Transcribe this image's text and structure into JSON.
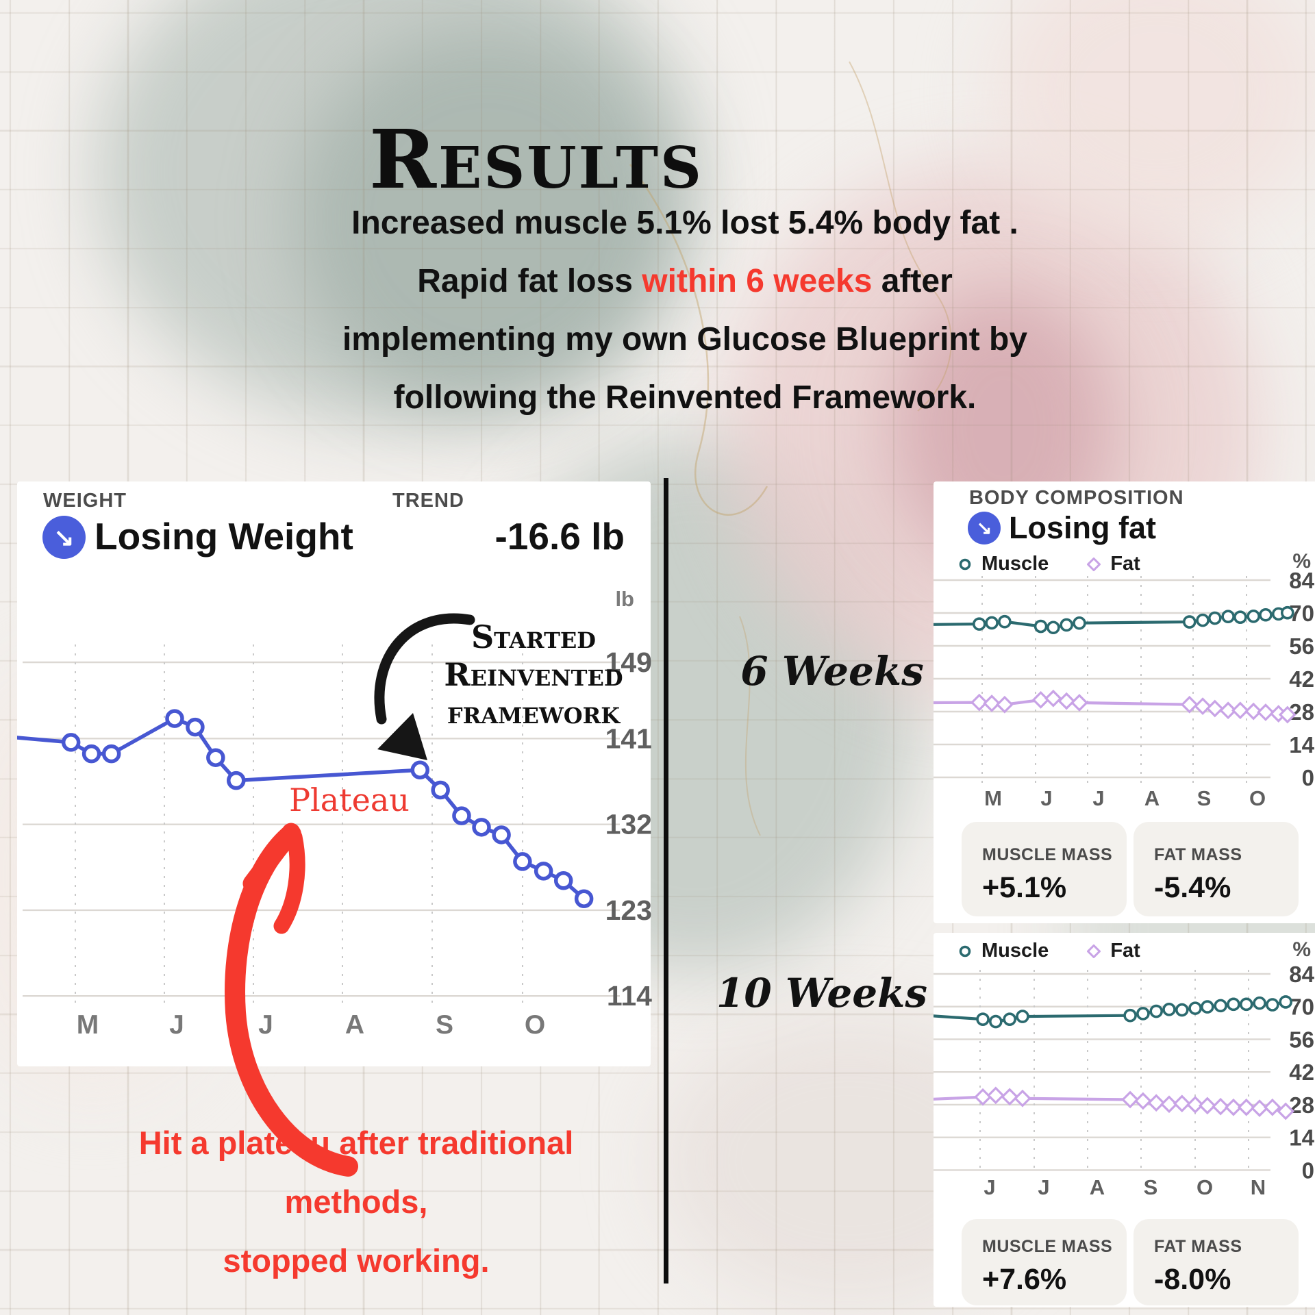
{
  "title": "Results",
  "icons": {
    "down_right_arrow": "↘"
  },
  "accent_colors": {
    "red": "#f5392e",
    "blue": "#4757d2",
    "teal": "#2b6a6f",
    "purple": "#c8a3e6"
  },
  "intro": {
    "line1": "Increased muscle 5.1% lost 5.4% body fat .",
    "line2_pre": "Rapid fat loss ",
    "line2_red": "within 6 weeks",
    "line2_post": " after",
    "line3": "implementing my own Glucose Blueprint by",
    "line4": "following the Reinvented Framework."
  },
  "weight_card": {
    "category": "WEIGHT",
    "trend_label": "TREND",
    "status": "Losing Weight",
    "trend_value": "-16.6 lb",
    "unit": "lb",
    "annotation_lines": [
      "Started",
      "Reinvented",
      "framework"
    ],
    "plateau": "Plateau"
  },
  "body_card": {
    "category": "BODY COMPOSITION",
    "status": "Losing fat",
    "legend": {
      "muscle": "Muscle",
      "fat": "Fat"
    },
    "unit": "%"
  },
  "section_labels": {
    "six": "6 Weeks",
    "ten": "10 Weeks"
  },
  "stats_6w": {
    "muscle_label": "MUSCLE MASS",
    "muscle_value": "+5.1%",
    "fat_label": "FAT MASS",
    "fat_value": "-5.4%"
  },
  "stats_10w": {
    "muscle_label": "MUSCLE MASS",
    "muscle_value": "+7.6%",
    "fat_label": "FAT MASS",
    "fat_value": "-8.0%"
  },
  "footer_note": {
    "line1": "Hit a plateau after traditional",
    "line2": "methods,",
    "line3": "stopped working."
  },
  "chart_data": [
    {
      "id": "weight_trend",
      "type": "line",
      "title": "Losing Weight",
      "ylabel": "lb",
      "ylim": [
        110,
        152
      ],
      "yticks": [
        149,
        141,
        132,
        123,
        114
      ],
      "xticks": [
        "M",
        "J",
        "J",
        "A",
        "S",
        "O"
      ],
      "grid": true,
      "series": [
        {
          "name": "Weight",
          "color": "#4757d2",
          "marker": "circle",
          "points": [
            {
              "x": 0.0,
              "y": 141.1,
              "m": 0
            },
            {
              "x": 0.092,
              "y": 140.6
            },
            {
              "x": 0.127,
              "y": 139.4
            },
            {
              "x": 0.161,
              "y": 139.4
            },
            {
              "x": 0.269,
              "y": 143.1
            },
            {
              "x": 0.304,
              "y": 142.2
            },
            {
              "x": 0.339,
              "y": 139.0
            },
            {
              "x": 0.374,
              "y": 136.6
            },
            {
              "x": 0.688,
              "y": 137.7
            },
            {
              "x": 0.723,
              "y": 135.6
            },
            {
              "x": 0.759,
              "y": 132.9
            },
            {
              "x": 0.793,
              "y": 131.7
            },
            {
              "x": 0.827,
              "y": 130.9
            },
            {
              "x": 0.863,
              "y": 128.1
            },
            {
              "x": 0.899,
              "y": 127.1
            },
            {
              "x": 0.933,
              "y": 126.1
            },
            {
              "x": 0.968,
              "y": 124.2
            }
          ]
        }
      ]
    },
    {
      "id": "body_comp_6w",
      "type": "line",
      "title": "Body Composition - 6 Weeks",
      "ylabel": "%",
      "ylim": [
        0,
        84
      ],
      "yticks": [
        84,
        70,
        56,
        42,
        28,
        14,
        0
      ],
      "xticks": [
        "M",
        "J",
        "J",
        "A",
        "S",
        "O"
      ],
      "grid": true,
      "legend_position": "top-left",
      "series": [
        {
          "name": "Muscle",
          "color": "#2b6a6f",
          "marker": "circle",
          "points": [
            {
              "x": 0.0,
              "y": 65.1,
              "m": 0
            },
            {
              "x": 0.128,
              "y": 65.3
            },
            {
              "x": 0.163,
              "y": 65.8
            },
            {
              "x": 0.199,
              "y": 66.3
            },
            {
              "x": 0.3,
              "y": 64.3
            },
            {
              "x": 0.335,
              "y": 63.8
            },
            {
              "x": 0.372,
              "y": 64.9
            },
            {
              "x": 0.408,
              "y": 65.7
            },
            {
              "x": 0.716,
              "y": 66.2
            },
            {
              "x": 0.753,
              "y": 66.9
            },
            {
              "x": 0.787,
              "y": 67.8
            },
            {
              "x": 0.824,
              "y": 68.5
            },
            {
              "x": 0.858,
              "y": 68.2
            },
            {
              "x": 0.895,
              "y": 68.6
            },
            {
              "x": 0.929,
              "y": 69.2
            },
            {
              "x": 0.965,
              "y": 69.6
            },
            {
              "x": 0.99,
              "y": 70.1
            }
          ]
        },
        {
          "name": "Fat",
          "color": "#c8a3e6",
          "marker": "diamond",
          "points": [
            {
              "x": 0.0,
              "y": 31.8,
              "m": 0
            },
            {
              "x": 0.128,
              "y": 31.9
            },
            {
              "x": 0.163,
              "y": 31.5
            },
            {
              "x": 0.199,
              "y": 31.0
            },
            {
              "x": 0.3,
              "y": 33.0
            },
            {
              "x": 0.335,
              "y": 33.6
            },
            {
              "x": 0.372,
              "y": 32.5
            },
            {
              "x": 0.408,
              "y": 31.8
            },
            {
              "x": 0.716,
              "y": 31.0
            },
            {
              "x": 0.753,
              "y": 30.3
            },
            {
              "x": 0.787,
              "y": 29.3
            },
            {
              "x": 0.824,
              "y": 28.5
            },
            {
              "x": 0.858,
              "y": 28.5
            },
            {
              "x": 0.895,
              "y": 28.1
            },
            {
              "x": 0.929,
              "y": 27.7
            },
            {
              "x": 0.965,
              "y": 27.1
            },
            {
              "x": 0.99,
              "y": 26.7
            }
          ]
        }
      ]
    },
    {
      "id": "body_comp_10w",
      "type": "line",
      "title": "Body Composition - 10 Weeks",
      "ylabel": "%",
      "ylim": [
        0,
        84
      ],
      "yticks": [
        84,
        70,
        56,
        42,
        28,
        14,
        0
      ],
      "xticks": [
        "J",
        "J",
        "A",
        "S",
        "O",
        "N"
      ],
      "grid": true,
      "legend_position": "top-left",
      "series": [
        {
          "name": "Muscle",
          "color": "#2b6a6f",
          "marker": "circle",
          "points": [
            {
              "x": 0.0,
              "y": 66.0,
              "m": 0
            },
            {
              "x": 0.138,
              "y": 64.6
            },
            {
              "x": 0.174,
              "y": 63.6
            },
            {
              "x": 0.213,
              "y": 64.6
            },
            {
              "x": 0.249,
              "y": 65.8
            },
            {
              "x": 0.55,
              "y": 66.2
            },
            {
              "x": 0.586,
              "y": 67.0
            },
            {
              "x": 0.623,
              "y": 68.0
            },
            {
              "x": 0.659,
              "y": 68.8
            },
            {
              "x": 0.695,
              "y": 68.6
            },
            {
              "x": 0.732,
              "y": 69.3
            },
            {
              "x": 0.766,
              "y": 69.9
            },
            {
              "x": 0.803,
              "y": 70.4
            },
            {
              "x": 0.839,
              "y": 71.0
            },
            {
              "x": 0.875,
              "y": 71.0
            },
            {
              "x": 0.912,
              "y": 71.5
            },
            {
              "x": 0.948,
              "y": 70.8
            },
            {
              "x": 0.985,
              "y": 72.0
            }
          ]
        },
        {
          "name": "Fat",
          "color": "#c8a3e6",
          "marker": "diamond",
          "points": [
            {
              "x": 0.0,
              "y": 30.4,
              "m": 0
            },
            {
              "x": 0.138,
              "y": 31.3
            },
            {
              "x": 0.174,
              "y": 32.0
            },
            {
              "x": 0.213,
              "y": 31.4
            },
            {
              "x": 0.249,
              "y": 30.7
            },
            {
              "x": 0.55,
              "y": 30.2
            },
            {
              "x": 0.586,
              "y": 29.6
            },
            {
              "x": 0.623,
              "y": 28.8
            },
            {
              "x": 0.659,
              "y": 28.2
            },
            {
              "x": 0.695,
              "y": 28.5
            },
            {
              "x": 0.732,
              "y": 28.0
            },
            {
              "x": 0.766,
              "y": 27.6
            },
            {
              "x": 0.803,
              "y": 27.2
            },
            {
              "x": 0.839,
              "y": 26.9
            },
            {
              "x": 0.875,
              "y": 26.9
            },
            {
              "x": 0.912,
              "y": 26.5
            },
            {
              "x": 0.948,
              "y": 26.9
            },
            {
              "x": 0.985,
              "y": 25.2
            }
          ]
        }
      ]
    }
  ]
}
